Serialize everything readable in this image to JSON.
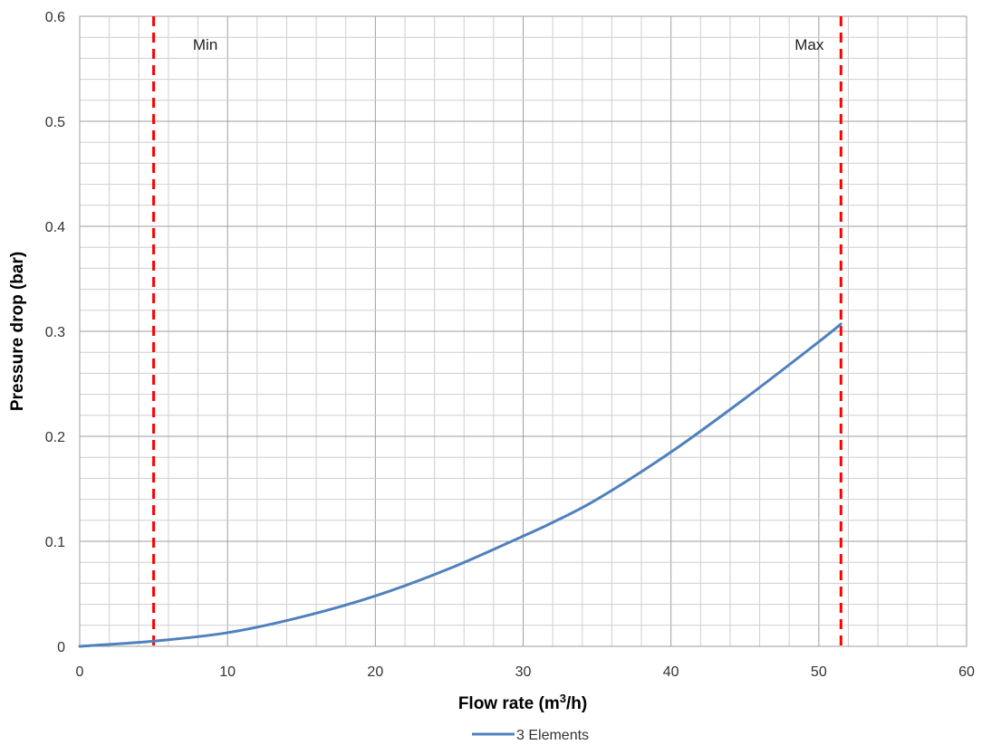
{
  "chart_data": {
    "type": "line",
    "title": "",
    "xlabel": {
      "prefix": "Flow rate (m",
      "sup": "3",
      "suffix": "/h)"
    },
    "ylabel": "Pressure drop (bar)",
    "xlim": [
      0,
      60
    ],
    "ylim": [
      0,
      0.6
    ],
    "x_ticks": [
      "0",
      "10",
      "20",
      "30",
      "40",
      "50",
      "60"
    ],
    "y_ticks": [
      "0",
      "0.1",
      "0.2",
      "0.3",
      "0.4",
      "0.5",
      "0.6"
    ],
    "x_tick_values": [
      0,
      10,
      20,
      30,
      40,
      50,
      60
    ],
    "y_tick_values": [
      0,
      0.1,
      0.2,
      0.3,
      0.4,
      0.5,
      0.6
    ],
    "x_minor_step": 2,
    "y_minor_step": 0.02,
    "grid": true,
    "legend_position": "bottom-center",
    "colors": {
      "series": "#4f81bd",
      "reference_lines": "#ff0000",
      "major_grid": "#9e9e9e",
      "minor_grid": "#cfcfcf"
    },
    "series": [
      {
        "name": "3 Elements",
        "x": [
          0,
          5,
          10,
          15,
          20,
          25,
          30,
          32,
          35,
          40,
          45,
          50,
          51.5
        ],
        "y": [
          0,
          0.005,
          0.013,
          0.028,
          0.048,
          0.074,
          0.105,
          0.118,
          0.14,
          0.185,
          0.236,
          0.29,
          0.307
        ]
      }
    ],
    "annotations": [
      {
        "label": "Min",
        "x": 5
      },
      {
        "label": "Max",
        "x": 51.5
      }
    ]
  }
}
